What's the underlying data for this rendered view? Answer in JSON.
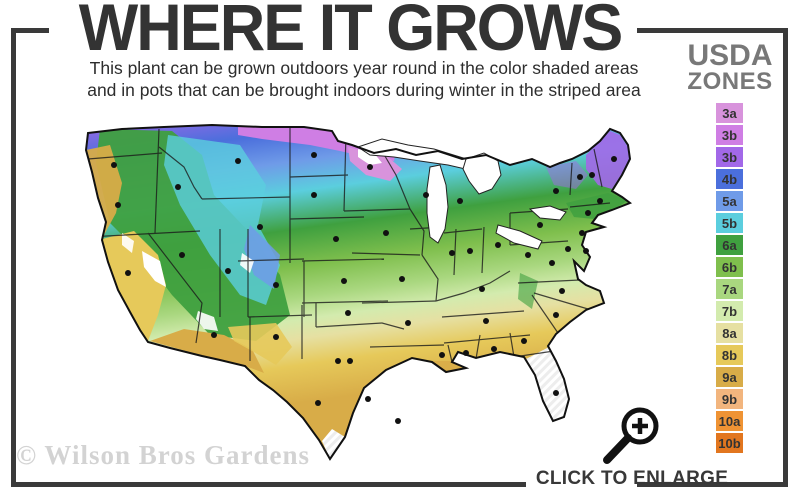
{
  "header": {
    "title": "WHERE IT GROWS",
    "subtitle_line1": "This plant can be grown outdoors year round in the color shaded areas",
    "subtitle_line2": "and in pots that can be brought indoors during winter in the striped area"
  },
  "legend": {
    "title_line1": "USDA",
    "title_line2": "ZONES",
    "zones": [
      {
        "label": "3a",
        "color": "#D893DC"
      },
      {
        "label": "3b",
        "color": "#CF7EE4"
      },
      {
        "label": "3b",
        "color": "#A268E8"
      },
      {
        "label": "4b",
        "color": "#4B6FDC"
      },
      {
        "label": "5a",
        "color": "#6F9BE8"
      },
      {
        "label": "5b",
        "color": "#5BCEDE"
      },
      {
        "label": "6a",
        "color": "#3FA03F"
      },
      {
        "label": "6b",
        "color": "#7FBF4D"
      },
      {
        "label": "7a",
        "color": "#A9D77F"
      },
      {
        "label": "7b",
        "color": "#D3EBAE"
      },
      {
        "label": "8a",
        "color": "#E6E0A2"
      },
      {
        "label": "8b",
        "color": "#E6C95A"
      },
      {
        "label": "9a",
        "color": "#D8AC48"
      },
      {
        "label": "9b",
        "color": "#F2B57E"
      },
      {
        "label": "10a",
        "color": "#EF9334"
      },
      {
        "label": "10b",
        "color": "#E2761F"
      }
    ]
  },
  "footer": {
    "watermark": "© Wilson Bros Gardens",
    "enlarge_label": "CLICK TO ENLARGE"
  }
}
